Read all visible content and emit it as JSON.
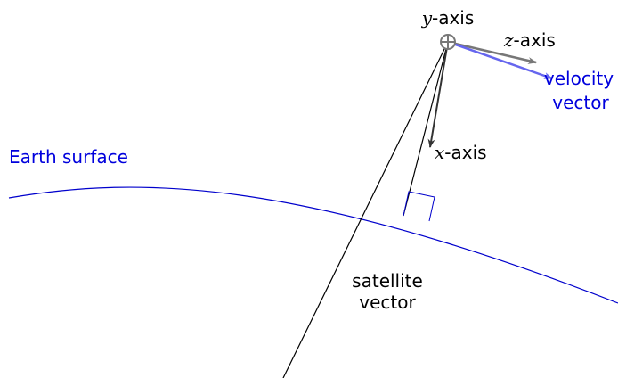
{
  "labels": {
    "y_axis": {
      "symbol": "y",
      "text": "-axis"
    },
    "z_axis": {
      "symbol": "z",
      "text": "-axis"
    },
    "x_axis": {
      "symbol": "x",
      "text": "-axis"
    },
    "velocity_vector": [
      "velocity",
      "vector"
    ],
    "earth_surface": "Earth surface",
    "satellite_vector": [
      "satellite",
      "vector"
    ]
  }
}
